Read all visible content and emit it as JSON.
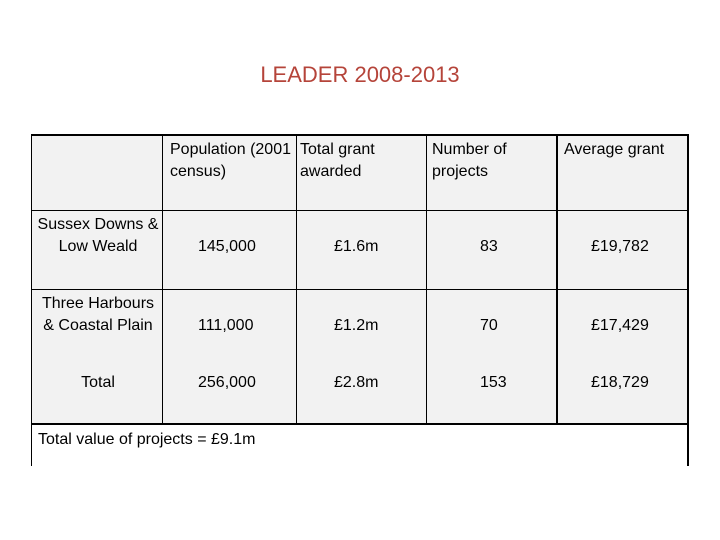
{
  "title": "LEADER 2008-2013",
  "headers": {
    "population": "Population (2001 census)",
    "total_grant": "Total grant awarded",
    "projects": "Number of projects",
    "average": "Average grant"
  },
  "rows": [
    {
      "area": "Sussex Downs & Low Weald",
      "population": "145,000",
      "grant": "£1.6m",
      "projects": "83",
      "average": "£19,782"
    },
    {
      "area": "Three Harbours & Coastal Plain",
      "population": "111,000",
      "grant": "£1.2m",
      "projects": "70",
      "average": "£17,429"
    },
    {
      "area": "Total",
      "population": "256,000",
      "grant": "£2.8m",
      "projects": "153",
      "average": "£18,729"
    }
  ],
  "footer": "Total value of projects = £9.1m"
}
